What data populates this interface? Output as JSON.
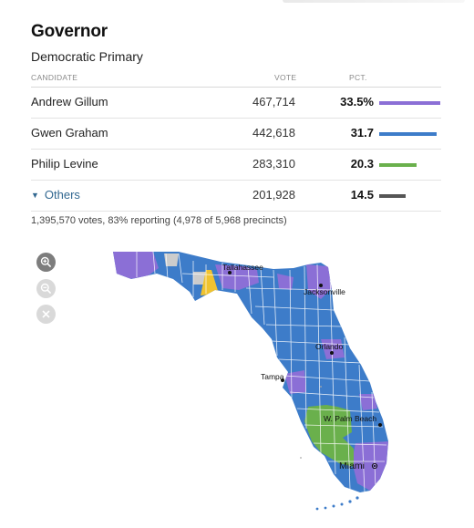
{
  "race": {
    "title": "Governor",
    "subtitle": "Democratic Primary"
  },
  "table": {
    "headers": {
      "candidate": "CANDIDATE",
      "vote": "VOTE",
      "pct": "PCT."
    },
    "rows": [
      {
        "name": "Andrew Gillum",
        "vote": "467,714",
        "pct": "33.5%",
        "pct_value": 33.5,
        "color": "#8b6fd6"
      },
      {
        "name": "Gwen Graham",
        "vote": "442,618",
        "pct": "31.7",
        "pct_value": 31.7,
        "color": "#3d7cc9"
      },
      {
        "name": "Philip Levine",
        "vote": "283,310",
        "pct": "20.3",
        "pct_value": 20.3,
        "color": "#6ab04c"
      }
    ],
    "others": {
      "name": "Others",
      "vote": "201,928",
      "pct": "14.5",
      "pct_value": 14.5,
      "color": "#555555"
    }
  },
  "summary": "1,395,570 votes, 83% reporting (4,978 of 5,968 precincts)",
  "map_controls": {
    "zoom_in_icon": "zoom-in-icon",
    "zoom_out_icon": "zoom-out-icon",
    "reset_icon": "close-icon"
  },
  "map": {
    "cities": {
      "tallahassee": "Tallahassee",
      "jacksonville": "Jacksonville",
      "orlando": "Orlando",
      "tampa": "Tampa",
      "wpb": "W. Palm Beach",
      "miami": "Miami"
    },
    "colors": {
      "gillum": "#8b6fd6",
      "graham": "#3d7cc9",
      "levine": "#6ab04c",
      "others": "#f0c330",
      "no_data": "#cccccc"
    }
  }
}
